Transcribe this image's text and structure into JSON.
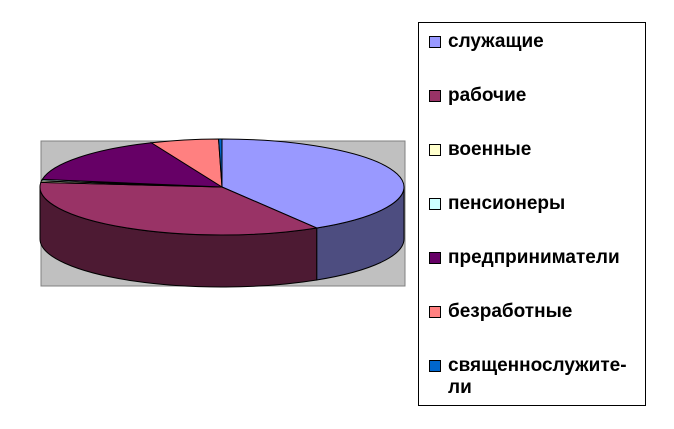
{
  "chart_data": {
    "type": "pie",
    "title": "",
    "three_d": true,
    "legend_position": "right",
    "plot_background": "#C0C0C0",
    "series": [
      {
        "name": "",
        "values": [
          41,
          35,
          0.5,
          0.5,
          16,
          6,
          0.3
        ]
      }
    ],
    "categories": [
      {
        "label": "служащие",
        "value": 41,
        "color": "#9999FF"
      },
      {
        "label": "рабочие",
        "value": 35,
        "color": "#993366"
      },
      {
        "label": "военные",
        "value": 0.5,
        "color": "#FFFFCC"
      },
      {
        "label": "пенсионеры",
        "value": 0.5,
        "color": "#CCFFFF"
      },
      {
        "label": "предприниматели",
        "value": 16,
        "color": "#660066"
      },
      {
        "label": "безработные",
        "value": 6,
        "color": "#FF8080"
      },
      {
        "label": "священнослужите-\nли",
        "value": 0.3,
        "color": "#0066CC"
      }
    ]
  }
}
